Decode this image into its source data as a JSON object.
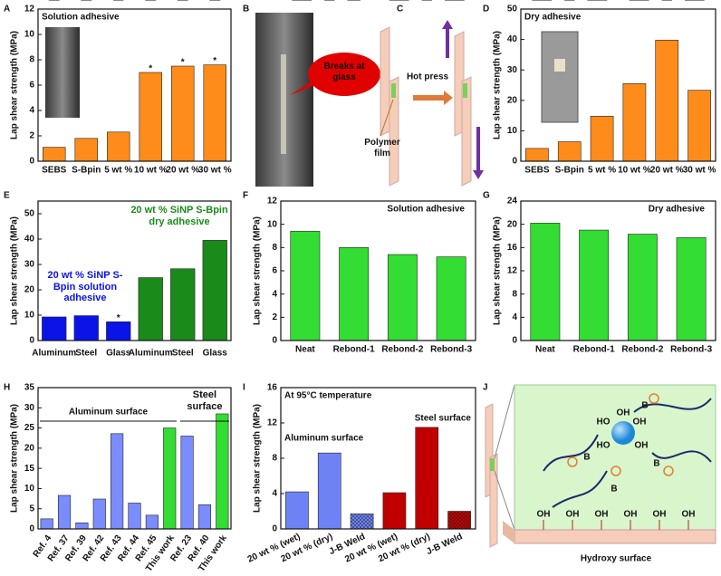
{
  "panel_labels": [
    "A",
    "B",
    "C",
    "D",
    "E",
    "F",
    "G",
    "H",
    "I",
    "J"
  ],
  "chart_data": [
    {
      "type": "bar",
      "title": "Solution adhesive",
      "y_label": "Lap shear strength (MPa)",
      "categories": [
        "SEBS",
        "S-Bpin",
        "5 wt %",
        "10 wt %",
        "20 wt %",
        "30 wt %"
      ],
      "values": [
        1.1,
        1.8,
        2.3,
        7.0,
        7.5,
        7.6
      ],
      "errors": [
        0.2,
        0.1,
        0.5,
        null,
        null,
        null
      ],
      "annotations": [
        null,
        null,
        null,
        "*",
        "*",
        "*"
      ],
      "color": "#ff8c1a",
      "ylim": [
        0,
        12
      ],
      "yticks": [
        0,
        2,
        4,
        6,
        8,
        10,
        12
      ]
    },
    {
      "type": "bar",
      "title": "Dry adhesive",
      "y_label": "Lap shear strength (MPa)",
      "categories": [
        "SEBS",
        "S-Bpin",
        "5 wt %",
        "10 wt %",
        "20 wt %",
        "30 wt %"
      ],
      "values": [
        4.2,
        6.4,
        14.8,
        25.5,
        39.8,
        23.3
      ],
      "errors": [
        1.0,
        0.4,
        0.7,
        3.0,
        3.0,
        2.0
      ],
      "color": "#ff8c1a",
      "ylim": [
        0,
        50
      ],
      "yticks": [
        0,
        10,
        20,
        30,
        40,
        50
      ]
    },
    {
      "type": "bar",
      "y_label": "Lap shear strength (MPa)",
      "categories": [
        "Aluminum",
        "Steel",
        "Glass",
        "Aluminum",
        "Steel",
        "Glass"
      ],
      "series": [
        {
          "name": "20 wt % SiNP S-Bpin solution adhesive",
          "color": "#0a14e6",
          "values": [
            9.3,
            9.8,
            7.4,
            null,
            null,
            null
          ],
          "errors": [
            1.3,
            1.0,
            null,
            null,
            null,
            null
          ]
        },
        {
          "name": "20 wt % SiNP S-Bpin dry adhesive",
          "color": "#1a8a1a",
          "values": [
            null,
            null,
            null,
            24.8,
            28.3,
            39.5
          ],
          "errors": [
            null,
            null,
            null,
            0.8,
            1.8,
            3.0
          ]
        }
      ],
      "annotations": [
        null,
        null,
        "*",
        null,
        null,
        null
      ],
      "ylim": [
        0,
        55
      ],
      "yticks": [
        0,
        10,
        20,
        30,
        40,
        50
      ]
    },
    {
      "type": "bar",
      "title": "Solution adhesive",
      "y_label": "Lap shear strength (MPa)",
      "categories": [
        "Neat",
        "Rebond-1",
        "Rebond-2",
        "Rebond-3"
      ],
      "values": [
        9.4,
        8.0,
        7.4,
        7.2
      ],
      "errors": [
        1.4,
        0.3,
        0.5,
        0.5
      ],
      "color": "#33dd33",
      "ylim": [
        0,
        12
      ],
      "yticks": [
        0,
        2,
        4,
        6,
        8,
        10,
        12
      ]
    },
    {
      "type": "bar",
      "title": "Dry adhesive",
      "y_label": "Lap shear strength (MPa)",
      "categories": [
        "Neat",
        "Rebond-1",
        "Rebond-2",
        "Rebond-3"
      ],
      "values": [
        20.2,
        19.0,
        18.3,
        17.7
      ],
      "errors": [
        2.1,
        1.1,
        0.9,
        0.6
      ],
      "color": "#33dd33",
      "ylim": [
        0,
        24
      ],
      "yticks": [
        0,
        4,
        8,
        12,
        16,
        20,
        24
      ]
    },
    {
      "type": "bar",
      "y_label": "Lap shear strength (MPa)",
      "categories": [
        "Ref. 4",
        "Ref. 37",
        "Ref. 39",
        "Ref. 42",
        "Ref. 43",
        "Ref. 44",
        "Ref. 45",
        "This work",
        "Ref. 23",
        "Ref. 40",
        "This work"
      ],
      "values": [
        2.5,
        8.3,
        1.5,
        7.4,
        23.6,
        6.4,
        3.4,
        25.0,
        23.0,
        6.0,
        28.5
      ],
      "colors": [
        "#7b8cff",
        "#7b8cff",
        "#7b8cff",
        "#7b8cff",
        "#7b8cff",
        "#7b8cff",
        "#7b8cff",
        "#33dd33",
        "#7b8cff",
        "#7b8cff",
        "#33dd33"
      ],
      "group_labels": [
        "Aluminum surface",
        "Steel surface"
      ],
      "ylim": [
        0,
        35
      ],
      "yticks": [
        0,
        5,
        10,
        15,
        20,
        25,
        30,
        35
      ]
    },
    {
      "type": "bar",
      "title": "At 95°C temperature",
      "y_label": "Lap shear strength (MPa)",
      "categories": [
        "20 wt % (wet)",
        "20 wt % (dry)",
        "J-B Weld",
        "20 wt % (wet)",
        "20 wt % (dry)",
        "J-B Weld"
      ],
      "values": [
        4.2,
        8.6,
        1.7,
        4.1,
        11.5,
        2.0
      ],
      "errors": [
        0.2,
        0.9,
        null,
        0.2,
        0.9,
        0.6
      ],
      "colors": [
        "#6f82f5",
        "#6f82f5",
        "#6f82f5",
        "#c00000",
        "#c00000",
        "#c00000"
      ],
      "hatched": [
        false,
        false,
        true,
        false,
        false,
        true
      ],
      "group_labels": [
        {
          "text": "Aluminum surface",
          "color": "#2a3fd0"
        },
        {
          "text": "Steel surface",
          "color": "#c00000"
        }
      ],
      "ylim": [
        0,
        16
      ],
      "yticks": [
        0,
        4,
        8,
        12,
        16
      ]
    }
  ],
  "diagrams": {
    "B": {
      "callout": "Breaks at glass"
    },
    "C": {
      "press_label": "Hot press",
      "film_label": "Polymer film"
    },
    "J": {
      "caption": "Hydroxy surface",
      "sphere_labels": [
        "HO",
        "OH",
        "HO",
        "OH",
        "OH"
      ],
      "boron_labels": [
        "B",
        "B",
        "B",
        "B"
      ],
      "surface_labels": [
        "OH",
        "OH",
        "OH",
        "OH",
        "OH",
        "OH"
      ]
    }
  }
}
